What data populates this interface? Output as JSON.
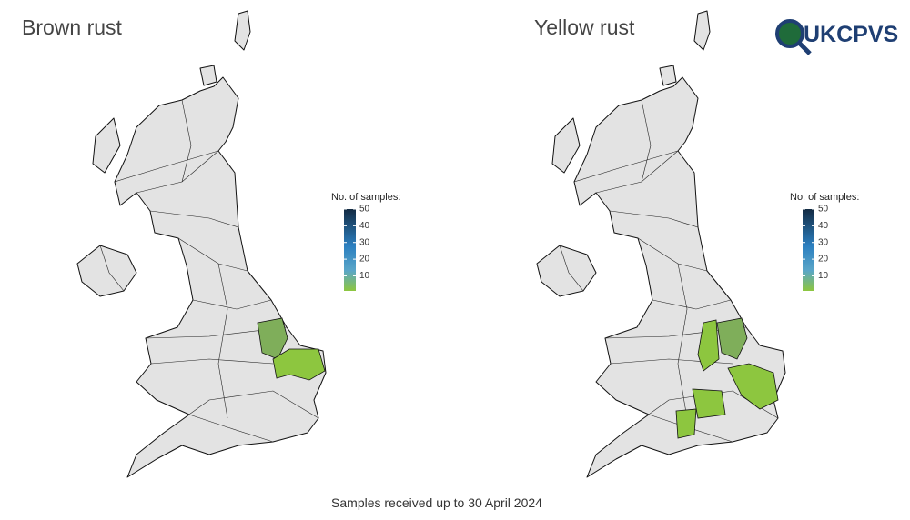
{
  "maps": [
    {
      "title": "Brown rust",
      "legend": {
        "title": "No. of samples:",
        "range": [
          1,
          50
        ],
        "ticks": [
          10,
          20,
          30,
          40,
          50
        ]
      }
    },
    {
      "title": "Yellow rust",
      "legend": {
        "title": "No. of samples:",
        "range": [
          1,
          50
        ],
        "ticks": [
          10,
          20,
          30,
          40,
          50
        ]
      }
    }
  ],
  "logo": "UKCPVS",
  "caption": "Samples received up to 30 April 2024"
}
